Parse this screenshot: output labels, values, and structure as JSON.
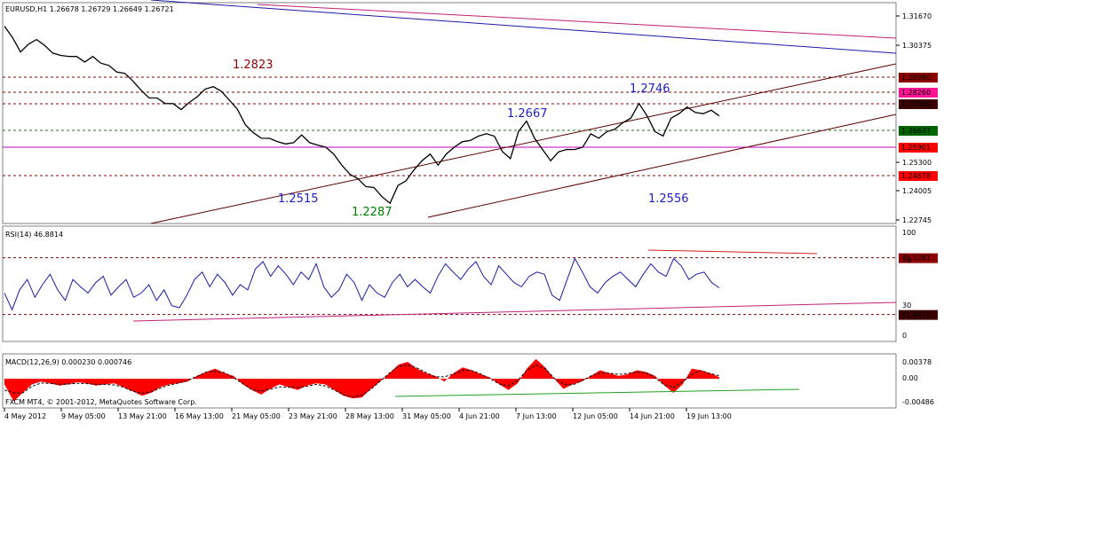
{
  "chart_data": [
    {
      "type": "line",
      "panel": "price",
      "title": "EURUSD,H1  1.26678 1.26729 1.26649 1.26721",
      "price_axis_ticks": [
        "1.31670",
        "1.30375",
        "1.25300",
        "1.24005",
        "1.22745"
      ],
      "ylim": [
        1.2215,
        1.32
      ],
      "series": [
        {
          "values": [
            1.31,
            1.304,
            1.2985,
            1.301,
            1.304,
            1.3005,
            1.298,
            1.296,
            1.2965,
            1.2955,
            1.294,
            1.2955,
            1.2935,
            1.2915,
            1.2895,
            1.288,
            1.2855,
            1.2805,
            1.278,
            1.277,
            1.2755,
            1.2745,
            1.2728,
            1.275,
            1.2785,
            1.281,
            1.283,
            1.28,
            1.277,
            1.272,
            1.266,
            1.2615,
            1.26,
            1.259,
            1.2585,
            1.2565,
            1.258,
            1.2605,
            1.258,
            1.256,
            1.256,
            1.252,
            1.248,
            1.243,
            1.242,
            1.2375,
            1.238,
            1.233,
            1.231,
            1.238,
            1.241,
            1.245,
            1.25,
            1.252,
            1.248,
            1.252,
            1.256,
            1.2575,
            1.259,
            1.26,
            1.262,
            1.26,
            1.254,
            1.25,
            1.263,
            1.2667,
            1.26,
            1.254,
            1.25,
            1.253,
            1.255,
            1.254,
            1.256,
            1.261,
            1.26,
            1.262,
            1.264,
            1.266,
            1.269,
            1.2746,
            1.27,
            1.262,
            1.261,
            1.268,
            1.271,
            1.273,
            1.2715,
            1.27,
            1.2725,
            1.269
          ]
        }
      ],
      "horizontal_levels": [
        {
          "label": "1.28980",
          "bg": "#8b0000",
          "style": "dashed"
        },
        {
          "label": "1.28260",
          "bg": "#ff1493",
          "style": "dashed"
        },
        {
          "label": "1.27848",
          "bg": "#3c0000",
          "style": "dashed"
        },
        {
          "label": "1.26637",
          "bg": "#006400",
          "style": "dashed"
        },
        {
          "label": "1.25901",
          "bg": "#ff0000",
          "style": "solid-magenta"
        },
        {
          "label": "1.24678",
          "bg": "#ff0000",
          "style": "dashed"
        }
      ],
      "annotations": [
        {
          "text": "1.2823",
          "color": "#8b0000"
        },
        {
          "text": "1.2746",
          "color": "#1c1cc8"
        },
        {
          "text": "1.2667",
          "color": "#1c1cc8"
        },
        {
          "text": "1.2515",
          "color": "#1c1cc8"
        },
        {
          "text": "1.2287",
          "color": "#008000"
        },
        {
          "text": "1.2556",
          "color": "#1c1cc8"
        }
      ],
      "trendlines": [
        {
          "name": "upper-channel",
          "color": "#5a0000"
        },
        {
          "name": "lower-channel",
          "color": "#5a0000"
        },
        {
          "name": "long-term-blue",
          "color": "#1a1aa6"
        },
        {
          "name": "long-term-magenta",
          "color": "#c0207a"
        }
      ]
    },
    {
      "type": "line",
      "panel": "rsi",
      "title": "RSI(14) 46.8814",
      "ylim": [
        0,
        100
      ],
      "axis_ticks": [
        "100",
        "70",
        "30",
        "0"
      ],
      "levels": [
        {
          "value": 75.7281,
          "label": "75.7281",
          "bg": "#8b0000"
        },
        {
          "value": 21.4876,
          "label": "21.4876",
          "bg": "#3c0000"
        }
      ],
      "series": [
        {
          "values": [
            42,
            26,
            45,
            55,
            38,
            50,
            60,
            45,
            35,
            55,
            48,
            42,
            52,
            58,
            40,
            48,
            55,
            38,
            42,
            50,
            35,
            45,
            30,
            28,
            40,
            55,
            62,
            48,
            60,
            52,
            40,
            50,
            45,
            65,
            72,
            58,
            68,
            60,
            50,
            62,
            55,
            70,
            48,
            38,
            45,
            60,
            52,
            35,
            50,
            42,
            38,
            52,
            60,
            48,
            55,
            48,
            42,
            58,
            70,
            62,
            55,
            65,
            72,
            58,
            50,
            68,
            60,
            52,
            48,
            58,
            62,
            60,
            40,
            35,
            55,
            75,
            62,
            48,
            42,
            52,
            58,
            62,
            55,
            48,
            60,
            70,
            62,
            58,
            75,
            68,
            55,
            60,
            62,
            52,
            47
          ]
        }
      ]
    },
    {
      "type": "area",
      "panel": "macd",
      "title": "MACD(12,26,9) 0.000230 0.000746",
      "axis_ticks": [
        "0.00378",
        "0.00",
        "-0.00486"
      ],
      "ylim": [
        -0.00486,
        0.00378
      ],
      "series": [
        {
          "name": "main",
          "values": [
            -0.001,
            -0.004,
            -0.0025,
            -0.001,
            -0.0005,
            -0.0008,
            -0.0012,
            -0.001,
            -0.0006,
            -0.0008,
            -0.0012,
            -0.001,
            -0.0008,
            -0.0015,
            -0.0022,
            -0.003,
            -0.0025,
            -0.0015,
            -0.001,
            -0.0008,
            -0.0005,
            0.0005,
            0.0012,
            0.0018,
            0.001,
            0.0005,
            -0.001,
            -0.002,
            -0.0028,
            -0.0018,
            -0.001,
            -0.0015,
            -0.002,
            -0.0012,
            -0.0008,
            -0.001,
            -0.002,
            -0.003,
            -0.0035,
            -0.0033,
            -0.0018,
            -0.0005,
            0.001,
            0.0025,
            0.003,
            0.0018,
            0.001,
            0.0005,
            -0.0005,
            0.001,
            0.002,
            0.0015,
            0.0008,
            0.0002,
            -0.001,
            -0.002,
            -0.0008,
            0.0018,
            0.0035,
            0.002,
            0.0,
            -0.0018,
            -0.001,
            -0.0005,
            0.0005,
            0.0015,
            0.001,
            0.0005,
            0.0008,
            0.0015,
            0.0012,
            0.0005,
            -0.0012,
            -0.0025,
            -0.001,
            0.0018,
            0.0015,
            0.001,
            0.0003
          ]
        }
      ],
      "x_tick_labels": [
        "4 May 2012",
        "9 May 05:00",
        "13 May 21:00",
        "16 May 13:00",
        "21 May 05:00",
        "23 May 21:00",
        "28 May 13:00",
        "31 May 05:00",
        "4 Jun 21:00",
        "7 Jun 13:00",
        "12 Jun 05:00",
        "14 Jun 21:00",
        "19 Jun 13:00"
      ]
    }
  ],
  "footer_text": "FXCM MT4, © 2001-2012, MetaQuotes Software Corp.",
  "colors": {
    "price_line": "#000000",
    "rsi_line": "#1a1aa6",
    "macd_fill": "#ff0000",
    "signal_line": "#000000",
    "pane_border": "#808080"
  }
}
